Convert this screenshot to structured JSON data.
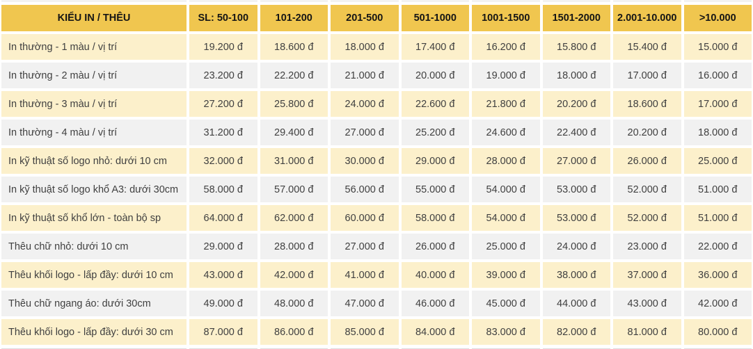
{
  "chart_data": {
    "type": "table",
    "title": "",
    "columns": [
      "KIỂU IN / THÊU",
      "SL: 50-100",
      "101-200",
      "201-500",
      "501-1000",
      "1001-1500",
      "1501-2000",
      "2.001-10.000",
      ">10.000"
    ],
    "rows": [
      {
        "label": "In thường - 1 màu / vị trí",
        "prices": [
          "19.200 đ",
          "18.600 đ",
          "18.000 đ",
          "17.400 đ",
          "16.200 đ",
          "15.800 đ",
          "15.400 đ",
          "15.000 đ"
        ]
      },
      {
        "label": "In thường - 2 màu / vị trí",
        "prices": [
          "23.200 đ",
          "22.200 đ",
          "21.000 đ",
          "20.000 đ",
          "19.000 đ",
          "18.000 đ",
          "17.000 đ",
          "16.000 đ"
        ]
      },
      {
        "label": "In thường - 3 màu / vị trí",
        "prices": [
          "27.200 đ",
          "25.800 đ",
          "24.000 đ",
          "22.600 đ",
          "21.800 đ",
          "20.200 đ",
          "18.600 đ",
          "17.000 đ"
        ]
      },
      {
        "label": "In thường - 4 màu / vị trí",
        "prices": [
          "31.200 đ",
          "29.400 đ",
          "27.000 đ",
          "25.200 đ",
          "24.600 đ",
          "22.400 đ",
          "20.200 đ",
          "18.000 đ"
        ]
      },
      {
        "label": "In kỹ thuật số logo nhỏ: dưới 10 cm",
        "prices": [
          "32.000 đ",
          "31.000 đ",
          "30.000 đ",
          "29.000 đ",
          "28.000 đ",
          "27.000 đ",
          "26.000 đ",
          "25.000 đ"
        ]
      },
      {
        "label": "In kỹ thuật số logo khổ A3: dưới 30cm",
        "prices": [
          "58.000 đ",
          "57.000 đ",
          "56.000 đ",
          "55.000 đ",
          "54.000 đ",
          "53.000 đ",
          "52.000 đ",
          "51.000 đ"
        ]
      },
      {
        "label": "In kỹ thuật số khổ lớn - toàn bộ sp",
        "prices": [
          "64.000 đ",
          "62.000 đ",
          "60.000 đ",
          "58.000 đ",
          "54.000 đ",
          "53.000 đ",
          "52.000 đ",
          "51.000 đ"
        ]
      },
      {
        "label": "Thêu chữ nhỏ: dưới 10 cm",
        "prices": [
          "29.000 đ",
          "28.000 đ",
          "27.000 đ",
          "26.000 đ",
          "25.000 đ",
          "24.000 đ",
          "23.000 đ",
          "22.000 đ"
        ]
      },
      {
        "label": "Thêu khối logo - lấp đầy: dưới 10 cm",
        "prices": [
          "43.000 đ",
          "42.000 đ",
          "41.000 đ",
          "40.000 đ",
          "39.000 đ",
          "38.000 đ",
          "37.000 đ",
          "36.000 đ"
        ]
      },
      {
        "label": "Thêu chữ ngang áo: dưới 30cm",
        "prices": [
          "49.000 đ",
          "48.000 đ",
          "47.000 đ",
          "46.000 đ",
          "45.000 đ",
          "44.000 đ",
          "43.000 đ",
          "42.000 đ"
        ]
      },
      {
        "label": "Thêu khối logo - lấp đầy: dưới 30 cm",
        "prices": [
          "87.000 đ",
          "86.000 đ",
          "85.000 đ",
          "84.000 đ",
          "83.000 đ",
          "82.000 đ",
          "81.000 đ",
          "80.000 đ"
        ]
      }
    ],
    "layout_hints": {
      "row_striping": [
        "cream",
        "gray"
      ],
      "first_column_align": "left",
      "price_align": "center",
      "grid": "white 4px gutters between cells"
    },
    "colors": {
      "header_bg": "#F0C64F",
      "header_text": "#151515",
      "row_cream_bg": "#FCF0CB",
      "row_gray_bg": "#F1F1F1",
      "body_text": "#404040",
      "gutter": "#FFFFFF"
    }
  }
}
